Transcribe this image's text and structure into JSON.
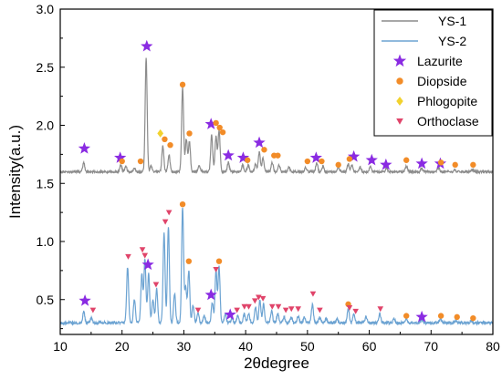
{
  "chart_data": {
    "type": "line",
    "title": "",
    "xlabel": "2θdegree",
    "ylabel": "Intensity(a.u.)",
    "xlim": [
      10,
      80
    ],
    "ylim": [
      0.2,
      3.0
    ],
    "x_ticks": [
      10,
      20,
      30,
      40,
      50,
      60,
      70,
      80
    ],
    "y_ticks": [
      0.5,
      1.0,
      1.5,
      2.0,
      2.5,
      3.0
    ],
    "grid": false,
    "legend_position": "top-right",
    "series": [
      {
        "name": "YS-1",
        "color": "#8c8c8c",
        "baseline": 1.6,
        "noise": 0.01,
        "peaks": [
          [
            13.8,
            0.08
          ],
          [
            19.8,
            0.06
          ],
          [
            20.6,
            0.05
          ],
          [
            22.0,
            0.03
          ],
          [
            23.9,
            0.98
          ],
          [
            24.7,
            0.05
          ],
          [
            26.6,
            0.22
          ],
          [
            27.6,
            0.15
          ],
          [
            29.8,
            0.73
          ],
          [
            30.4,
            0.28
          ],
          [
            30.9,
            0.26
          ],
          [
            32.5,
            0.05
          ],
          [
            34.5,
            0.32
          ],
          [
            35.2,
            0.3
          ],
          [
            35.7,
            0.36
          ],
          [
            37.2,
            0.08
          ],
          [
            39.5,
            0.06
          ],
          [
            40.4,
            0.06
          ],
          [
            41.6,
            0.07
          ],
          [
            42.2,
            0.17
          ],
          [
            42.8,
            0.12
          ],
          [
            44.3,
            0.08
          ],
          [
            45.4,
            0.06
          ],
          [
            47.0,
            0.04
          ],
          [
            49.7,
            0.04
          ],
          [
            51.5,
            0.08
          ],
          [
            52.5,
            0.05
          ],
          [
            55.0,
            0.04
          ],
          [
            56.6,
            0.07
          ],
          [
            57.2,
            0.06
          ],
          [
            58.5,
            0.04
          ],
          [
            60.2,
            0.05
          ],
          [
            62.8,
            0.03
          ],
          [
            66.0,
            0.05
          ],
          [
            68.5,
            0.03
          ],
          [
            71.2,
            0.04
          ],
          [
            73.8,
            0.02
          ],
          [
            76.7,
            0.02
          ]
        ]
      },
      {
        "name": "YS-2",
        "color": "#6ca3d2",
        "baseline": 0.3,
        "noise": 0.012,
        "peaks": [
          [
            13.8,
            0.1
          ],
          [
            15.0,
            0.04
          ],
          [
            20.9,
            0.48
          ],
          [
            22.0,
            0.2
          ],
          [
            23.2,
            0.42
          ],
          [
            23.7,
            0.55
          ],
          [
            24.3,
            0.42
          ],
          [
            25.0,
            0.2
          ],
          [
            25.6,
            0.3
          ],
          [
            26.8,
            0.78
          ],
          [
            27.5,
            0.82
          ],
          [
            28.5,
            0.25
          ],
          [
            29.8,
            1.0
          ],
          [
            30.3,
            0.3
          ],
          [
            30.8,
            0.45
          ],
          [
            31.5,
            0.15
          ],
          [
            32.3,
            0.08
          ],
          [
            33.3,
            0.06
          ],
          [
            34.6,
            0.18
          ],
          [
            35.2,
            0.45
          ],
          [
            35.7,
            0.48
          ],
          [
            36.7,
            0.08
          ],
          [
            37.8,
            0.04
          ],
          [
            38.7,
            0.06
          ],
          [
            39.8,
            0.08
          ],
          [
            40.5,
            0.08
          ],
          [
            41.6,
            0.14
          ],
          [
            42.3,
            0.2
          ],
          [
            42.9,
            0.16
          ],
          [
            44.2,
            0.1
          ],
          [
            45.2,
            0.08
          ],
          [
            46.2,
            0.05
          ],
          [
            47.4,
            0.05
          ],
          [
            48.5,
            0.06
          ],
          [
            49.5,
            0.05
          ],
          [
            50.8,
            0.16
          ],
          [
            52.0,
            0.05
          ],
          [
            53.0,
            0.04
          ],
          [
            54.8,
            0.03
          ],
          [
            56.6,
            0.12
          ],
          [
            57.5,
            0.07
          ],
          [
            59.5,
            0.05
          ],
          [
            61.7,
            0.08
          ],
          [
            64.0,
            0.03
          ],
          [
            66.0,
            0.04
          ],
          [
            68.5,
            0.03
          ],
          [
            71.5,
            0.03
          ],
          [
            74.0,
            0.02
          ],
          [
            76.5,
            0.02
          ]
        ]
      }
    ],
    "markers": [
      {
        "name": "Lazurite",
        "shape": "star",
        "color": "#8a2be2",
        "points": [
          [
            13.9,
            1.8
          ],
          [
            19.7,
            1.72
          ],
          [
            24.0,
            2.68
          ],
          [
            34.4,
            2.01
          ],
          [
            37.2,
            1.74
          ],
          [
            39.6,
            1.72
          ],
          [
            42.2,
            1.85
          ],
          [
            51.4,
            1.72
          ],
          [
            57.5,
            1.73
          ],
          [
            60.4,
            1.7
          ],
          [
            62.7,
            1.66
          ],
          [
            68.5,
            1.67
          ],
          [
            71.5,
            1.67
          ],
          [
            14.0,
            0.49
          ],
          [
            24.2,
            0.8
          ],
          [
            34.4,
            0.54
          ],
          [
            37.5,
            0.37
          ],
          [
            68.5,
            0.35
          ]
        ]
      },
      {
        "name": "Diopside",
        "shape": "circle",
        "color": "#f28c28",
        "points": [
          [
            20.0,
            1.69
          ],
          [
            23.0,
            1.69
          ],
          [
            26.9,
            1.88
          ],
          [
            27.8,
            1.83
          ],
          [
            29.8,
            2.35
          ],
          [
            30.9,
            1.93
          ],
          [
            35.2,
            2.02
          ],
          [
            35.8,
            1.98
          ],
          [
            36.3,
            1.94
          ],
          [
            40.3,
            1.7
          ],
          [
            43.0,
            1.79
          ],
          [
            44.6,
            1.74
          ],
          [
            45.2,
            1.74
          ],
          [
            50.0,
            1.69
          ],
          [
            52.3,
            1.69
          ],
          [
            55.0,
            1.66
          ],
          [
            56.8,
            1.71
          ],
          [
            66.0,
            1.7
          ],
          [
            71.6,
            1.68
          ],
          [
            73.9,
            1.66
          ],
          [
            76.8,
            1.66
          ],
          [
            29.8,
            1.32
          ],
          [
            30.8,
            0.83
          ],
          [
            35.7,
            0.83
          ],
          [
            56.6,
            0.46
          ],
          [
            66.0,
            0.36
          ],
          [
            71.6,
            0.36
          ],
          [
            74.2,
            0.35
          ],
          [
            76.8,
            0.34
          ]
        ]
      },
      {
        "name": "Phlogopite",
        "shape": "diamond",
        "color": "#f2d22e",
        "points": [
          [
            26.2,
            1.93
          ]
        ]
      },
      {
        "name": "Orthoclase",
        "shape": "triangle",
        "color": "#e0446a",
        "points": [
          [
            21.0,
            0.87
          ],
          [
            23.3,
            0.93
          ],
          [
            23.7,
            0.88
          ],
          [
            25.5,
            0.63
          ],
          [
            27.0,
            1.17
          ],
          [
            27.6,
            1.25
          ],
          [
            35.2,
            0.76
          ],
          [
            15.3,
            0.41
          ],
          [
            32.3,
            0.41
          ],
          [
            38.6,
            0.41
          ],
          [
            39.8,
            0.44
          ],
          [
            40.5,
            0.44
          ],
          [
            41.5,
            0.49
          ],
          [
            42.1,
            0.52
          ],
          [
            42.8,
            0.51
          ],
          [
            44.3,
            0.44
          ],
          [
            45.3,
            0.44
          ],
          [
            46.5,
            0.41
          ],
          [
            47.4,
            0.42
          ],
          [
            48.5,
            0.42
          ],
          [
            50.9,
            0.55
          ],
          [
            52.0,
            0.41
          ],
          [
            56.8,
            0.43
          ],
          [
            57.8,
            0.4
          ],
          [
            61.8,
            0.42
          ]
        ]
      }
    ]
  }
}
